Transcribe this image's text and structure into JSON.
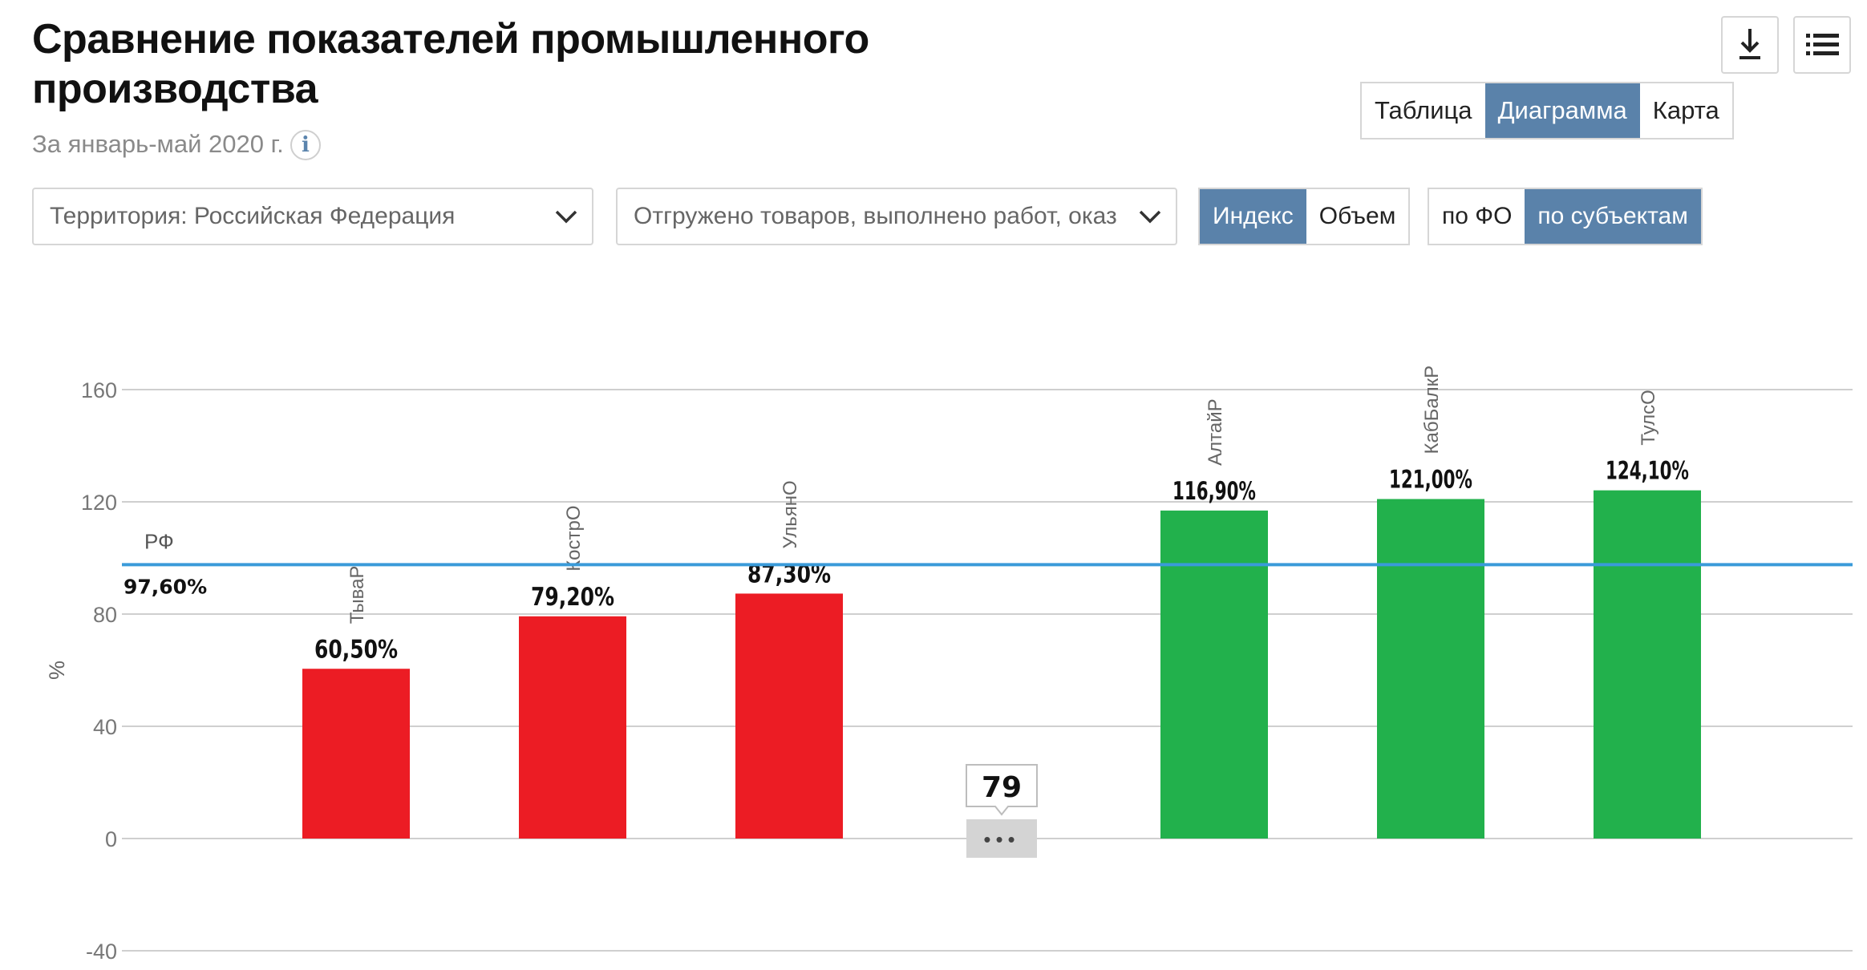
{
  "header": {
    "title": "Сравнение показателей промышленного производства",
    "subtitle": "За январь-май 2020 г.",
    "info_icon": "i"
  },
  "toolbar": {
    "download_icon": "download-icon",
    "list_icon": "list-icon"
  },
  "view_tabs": {
    "table": "Таблица",
    "diagram": "Диаграмма",
    "map": "Карта",
    "active": "Диаграмма"
  },
  "filters": {
    "territory": "Территория: Российская  Федерация",
    "indicator": "Отгружено товаров, выполнено работ, оказ"
  },
  "measure_toggle": {
    "index": "Индекс",
    "volume": "Объем",
    "active": "Индекс"
  },
  "level_toggle": {
    "fo": "по ФО",
    "subjects": "по субъектам",
    "active": "по субъектам"
  },
  "colors": {
    "accent": "#5a82aa",
    "low": "#ec1c24",
    "high": "#22b14c",
    "reference": "#3a9bd9"
  },
  "chart_data": {
    "type": "bar",
    "ylabel": "%",
    "ylim": [
      -40,
      160
    ],
    "yticks": [
      -40,
      0,
      40,
      80,
      120,
      160
    ],
    "grid": true,
    "reference": {
      "label": "РФ",
      "value": 97.6,
      "value_label": "97,60%"
    },
    "gap_indicator": {
      "count_label": "79",
      "dots": "•••"
    },
    "categories": [
      "ТываР",
      "КострО",
      "УльянО",
      "АлтайР",
      "КабБалкР",
      "ТулсО"
    ],
    "values": [
      60.5,
      79.2,
      87.3,
      116.9,
      121.0,
      124.1
    ],
    "value_labels": [
      "60,50%",
      "79,20%",
      "87,30%",
      "116,90%",
      "121,00%",
      "124,10%"
    ],
    "bar_colors": [
      "#ec1c24",
      "#ec1c24",
      "#ec1c24",
      "#22b14c",
      "#22b14c",
      "#22b14c"
    ]
  }
}
